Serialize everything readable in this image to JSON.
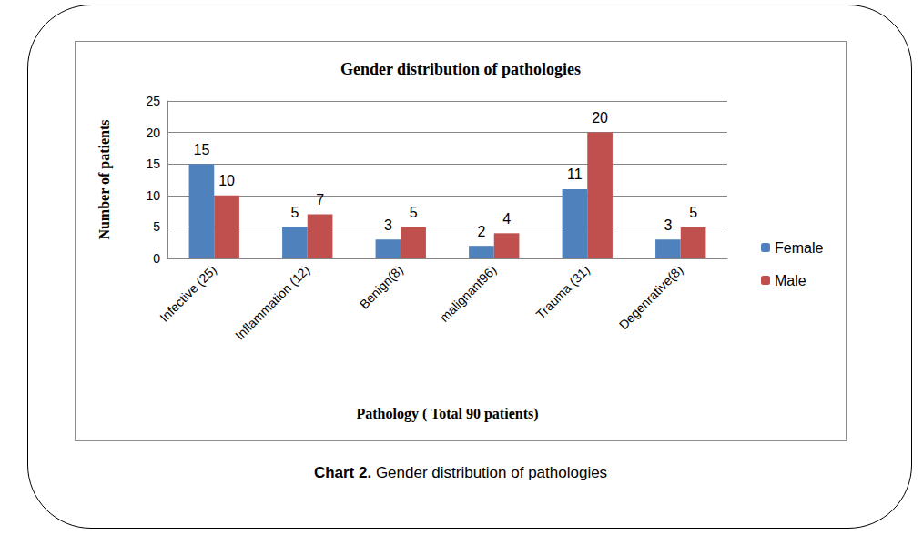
{
  "chart_data": {
    "type": "bar",
    "title": "Gender distribution of pathologies",
    "x_label": "Pathology ( Total 90 patients)",
    "y_label": "Number of patients",
    "categories": [
      "Infective (25)",
      "Inflammation (12)",
      "Benign(8)",
      "malignant96)",
      "Trauma (31)",
      "Degenrative(8)"
    ],
    "series": [
      {
        "name": "Female",
        "color": "#4f81bd",
        "values": [
          15,
          5,
          3,
          2,
          11,
          3
        ]
      },
      {
        "name": "Male",
        "color": "#c0504d",
        "values": [
          10,
          7,
          5,
          4,
          20,
          5
        ]
      }
    ],
    "ylim": [
      0,
      25
    ],
    "yticks": [
      0,
      5,
      10,
      15,
      20,
      25
    ],
    "grid": true,
    "legend": "right",
    "data_labels": true
  },
  "caption": {
    "label": "Chart 2.",
    "text": "Gender distribution of pathologies"
  }
}
